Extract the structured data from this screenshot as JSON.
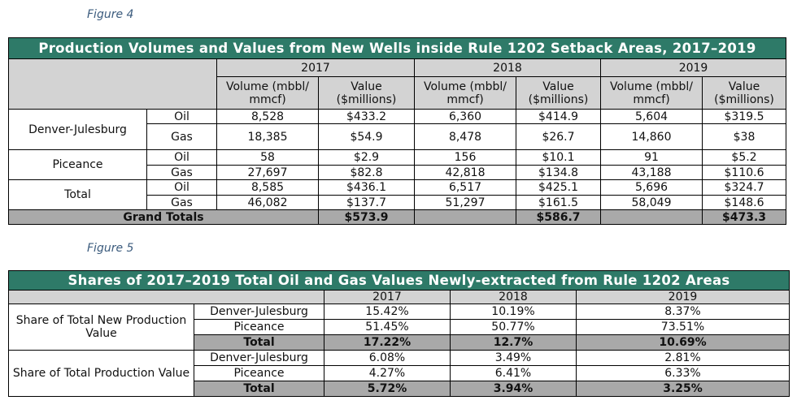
{
  "figure4": {
    "caption": "Figure 4",
    "title": "Production Volumes and Values from New Wells inside Rule 1202 Setback Areas, 2017–2019",
    "years": [
      "2017",
      "2018",
      "2019"
    ],
    "volume_header": "Volume (mbbl/ mmcf)",
    "value_header": "Value ($millions)",
    "groups": [
      {
        "name": "Denver-Julesburg",
        "rows": [
          {
            "type": "Oil",
            "cells": [
              "8,528",
              "$433.2",
              "6,360",
              "$414.9",
              "5,604",
              "$319.5"
            ]
          },
          {
            "type": "Gas",
            "cells": [
              "18,385",
              "$54.9",
              "8,478",
              "$26.7",
              "14,860",
              "$38"
            ]
          }
        ]
      },
      {
        "name": "Piceance",
        "rows": [
          {
            "type": "Oil",
            "cells": [
              "58",
              "$2.9",
              "156",
              "$10.1",
              "91",
              "$5.2"
            ]
          },
          {
            "type": "Gas",
            "cells": [
              "27,697",
              "$82.8",
              "42,818",
              "$134.8",
              "43,188",
              "$110.6"
            ]
          }
        ]
      },
      {
        "name": "Total",
        "rows": [
          {
            "type": "Oil",
            "cells": [
              "8,585",
              "$436.1",
              "6,517",
              "$425.1",
              "5,696",
              "$324.7"
            ]
          },
          {
            "type": "Gas",
            "cells": [
              "46,082",
              "$137.7",
              "51,297",
              "$161.5",
              "58,049",
              "$148.6"
            ]
          }
        ]
      }
    ],
    "grand_totals_label": "Grand Totals",
    "grand_totals": [
      "$573.9",
      "$586.7",
      "$473.3"
    ]
  },
  "figure5": {
    "caption": "Figure 5",
    "title": "Shares of 2017–2019 Total Oil and Gas Values Newly-extracted from Rule 1202 Areas",
    "years": [
      "2017",
      "2018",
      "2019"
    ],
    "groups": [
      {
        "name": "Share of Total New Production Value",
        "rows": [
          {
            "label": "Denver-Julesburg",
            "cells": [
              "15.42%",
              "10.19%",
              "8.37%"
            ]
          },
          {
            "label": "Piceance",
            "cells": [
              "51.45%",
              "50.77%",
              "73.51%"
            ]
          }
        ],
        "total": {
          "label": "Total",
          "cells": [
            "17.22%",
            "12.7%",
            "10.69%"
          ]
        }
      },
      {
        "name": "Share of Total Production Value",
        "rows": [
          {
            "label": "Denver-Julesburg",
            "cells": [
              "6.08%",
              "3.49%",
              "2.81%"
            ]
          },
          {
            "label": "Piceance",
            "cells": [
              "4.27%",
              "6.41%",
              "6.33%"
            ]
          }
        ],
        "total": {
          "label": "Total",
          "cells": [
            "5.72%",
            "3.94%",
            "3.25%"
          ]
        }
      }
    ]
  }
}
